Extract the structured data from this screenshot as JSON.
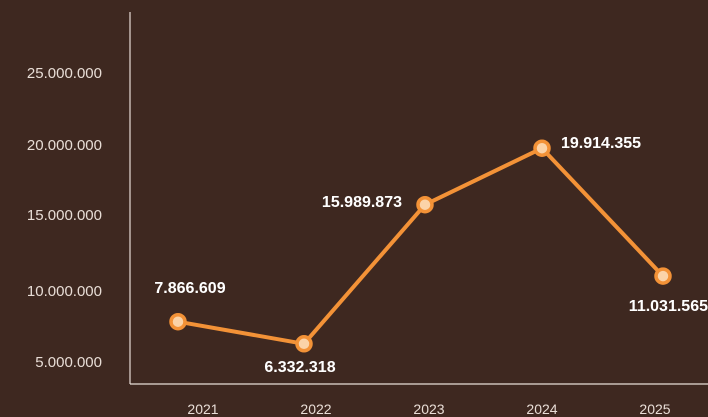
{
  "chart_data": {
    "type": "line",
    "title": "",
    "xlabel": "",
    "ylabel": "",
    "categories": [
      "2021",
      "2022",
      "2023",
      "2024",
      "2025"
    ],
    "series": [
      {
        "values": [
          7866609,
          6332318,
          15989873,
          19914355,
          11031565
        ],
        "labels": [
          "7.866.609",
          "6.332.318",
          "15.989.873",
          "19.914.355",
          "11.031.565"
        ]
      }
    ],
    "y_ticks": [
      {
        "value": 5000000,
        "label": "5.000.000"
      },
      {
        "value": 10000000,
        "label": "10.000.000"
      },
      {
        "value": 15000000,
        "label": "15.000.000"
      },
      {
        "value": 20000000,
        "label": "20.000.000"
      },
      {
        "value": 25000000,
        "label": "25.000.000"
      }
    ],
    "ylim": [
      2000000,
      27000000
    ],
    "grid": false,
    "legend": "none",
    "colors": {
      "background": "#3e2820",
      "line": "#f39237",
      "marker_inner": "#fbd3a8",
      "axis": "#e8ddd6",
      "text": "#e8ddd6",
      "data_label": "#ffffff"
    }
  }
}
